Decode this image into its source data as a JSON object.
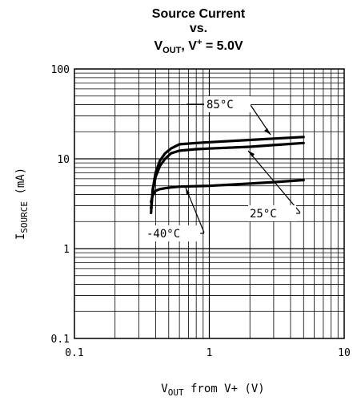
{
  "chart_data": {
    "type": "line",
    "title": {
      "line1": "Source Current",
      "line2": "vs.",
      "line3_v": "V",
      "line3_sub": "OUT",
      "line3_mid": ", V",
      "line3_sup": "+",
      "line3_end": " = 5.0V"
    },
    "xlabel": {
      "v": "V",
      "sub": "OUT",
      "rest": " from V+ (V)"
    },
    "ylabel": {
      "i": "I",
      "sub": "SOURCE",
      "rest": " (mA)"
    },
    "x_scale": "log",
    "y_scale": "log",
    "xlim": [
      0.1,
      10
    ],
    "ylim": [
      0.1,
      100
    ],
    "x_ticks": [
      {
        "value": 0.1,
        "label": "0.1"
      },
      {
        "value": 1,
        "label": "1"
      },
      {
        "value": 10,
        "label": "10"
      }
    ],
    "y_ticks": [
      {
        "value": 0.1,
        "label": "0.1"
      },
      {
        "value": 1,
        "label": "1"
      },
      {
        "value": 10,
        "label": "10"
      },
      {
        "value": 100,
        "label": "100"
      }
    ],
    "grid": true,
    "series": [
      {
        "name": "85°C",
        "x": [
          0.37,
          0.38,
          0.4,
          0.43,
          0.47,
          0.52,
          0.6,
          0.8,
          1.0,
          2.0,
          3.0,
          5.0
        ],
        "y": [
          2.5,
          4.5,
          7.0,
          9.5,
          11.5,
          13.0,
          14.5,
          15.0,
          15.3,
          16.2,
          16.8,
          17.5
        ]
      },
      {
        "name": "25°C",
        "x": [
          0.37,
          0.38,
          0.4,
          0.43,
          0.47,
          0.52,
          0.6,
          0.8,
          1.0,
          2.0,
          3.0,
          5.0
        ],
        "y": [
          2.8,
          4.3,
          6.3,
          8.3,
          10.0,
          11.5,
          12.3,
          12.8,
          13.0,
          13.6,
          14.2,
          15.0
        ]
      },
      {
        "name": "-40°C",
        "x": [
          0.37,
          0.38,
          0.4,
          0.43,
          0.47,
          0.52,
          0.6,
          1.0,
          2.0,
          3.0,
          5.0
        ],
        "y": [
          3.3,
          3.9,
          4.4,
          4.6,
          4.7,
          4.8,
          4.9,
          5.0,
          5.3,
          5.5,
          5.8
        ]
      }
    ],
    "annotations": [
      "85°C",
      "25°C",
      "-40°C"
    ]
  }
}
